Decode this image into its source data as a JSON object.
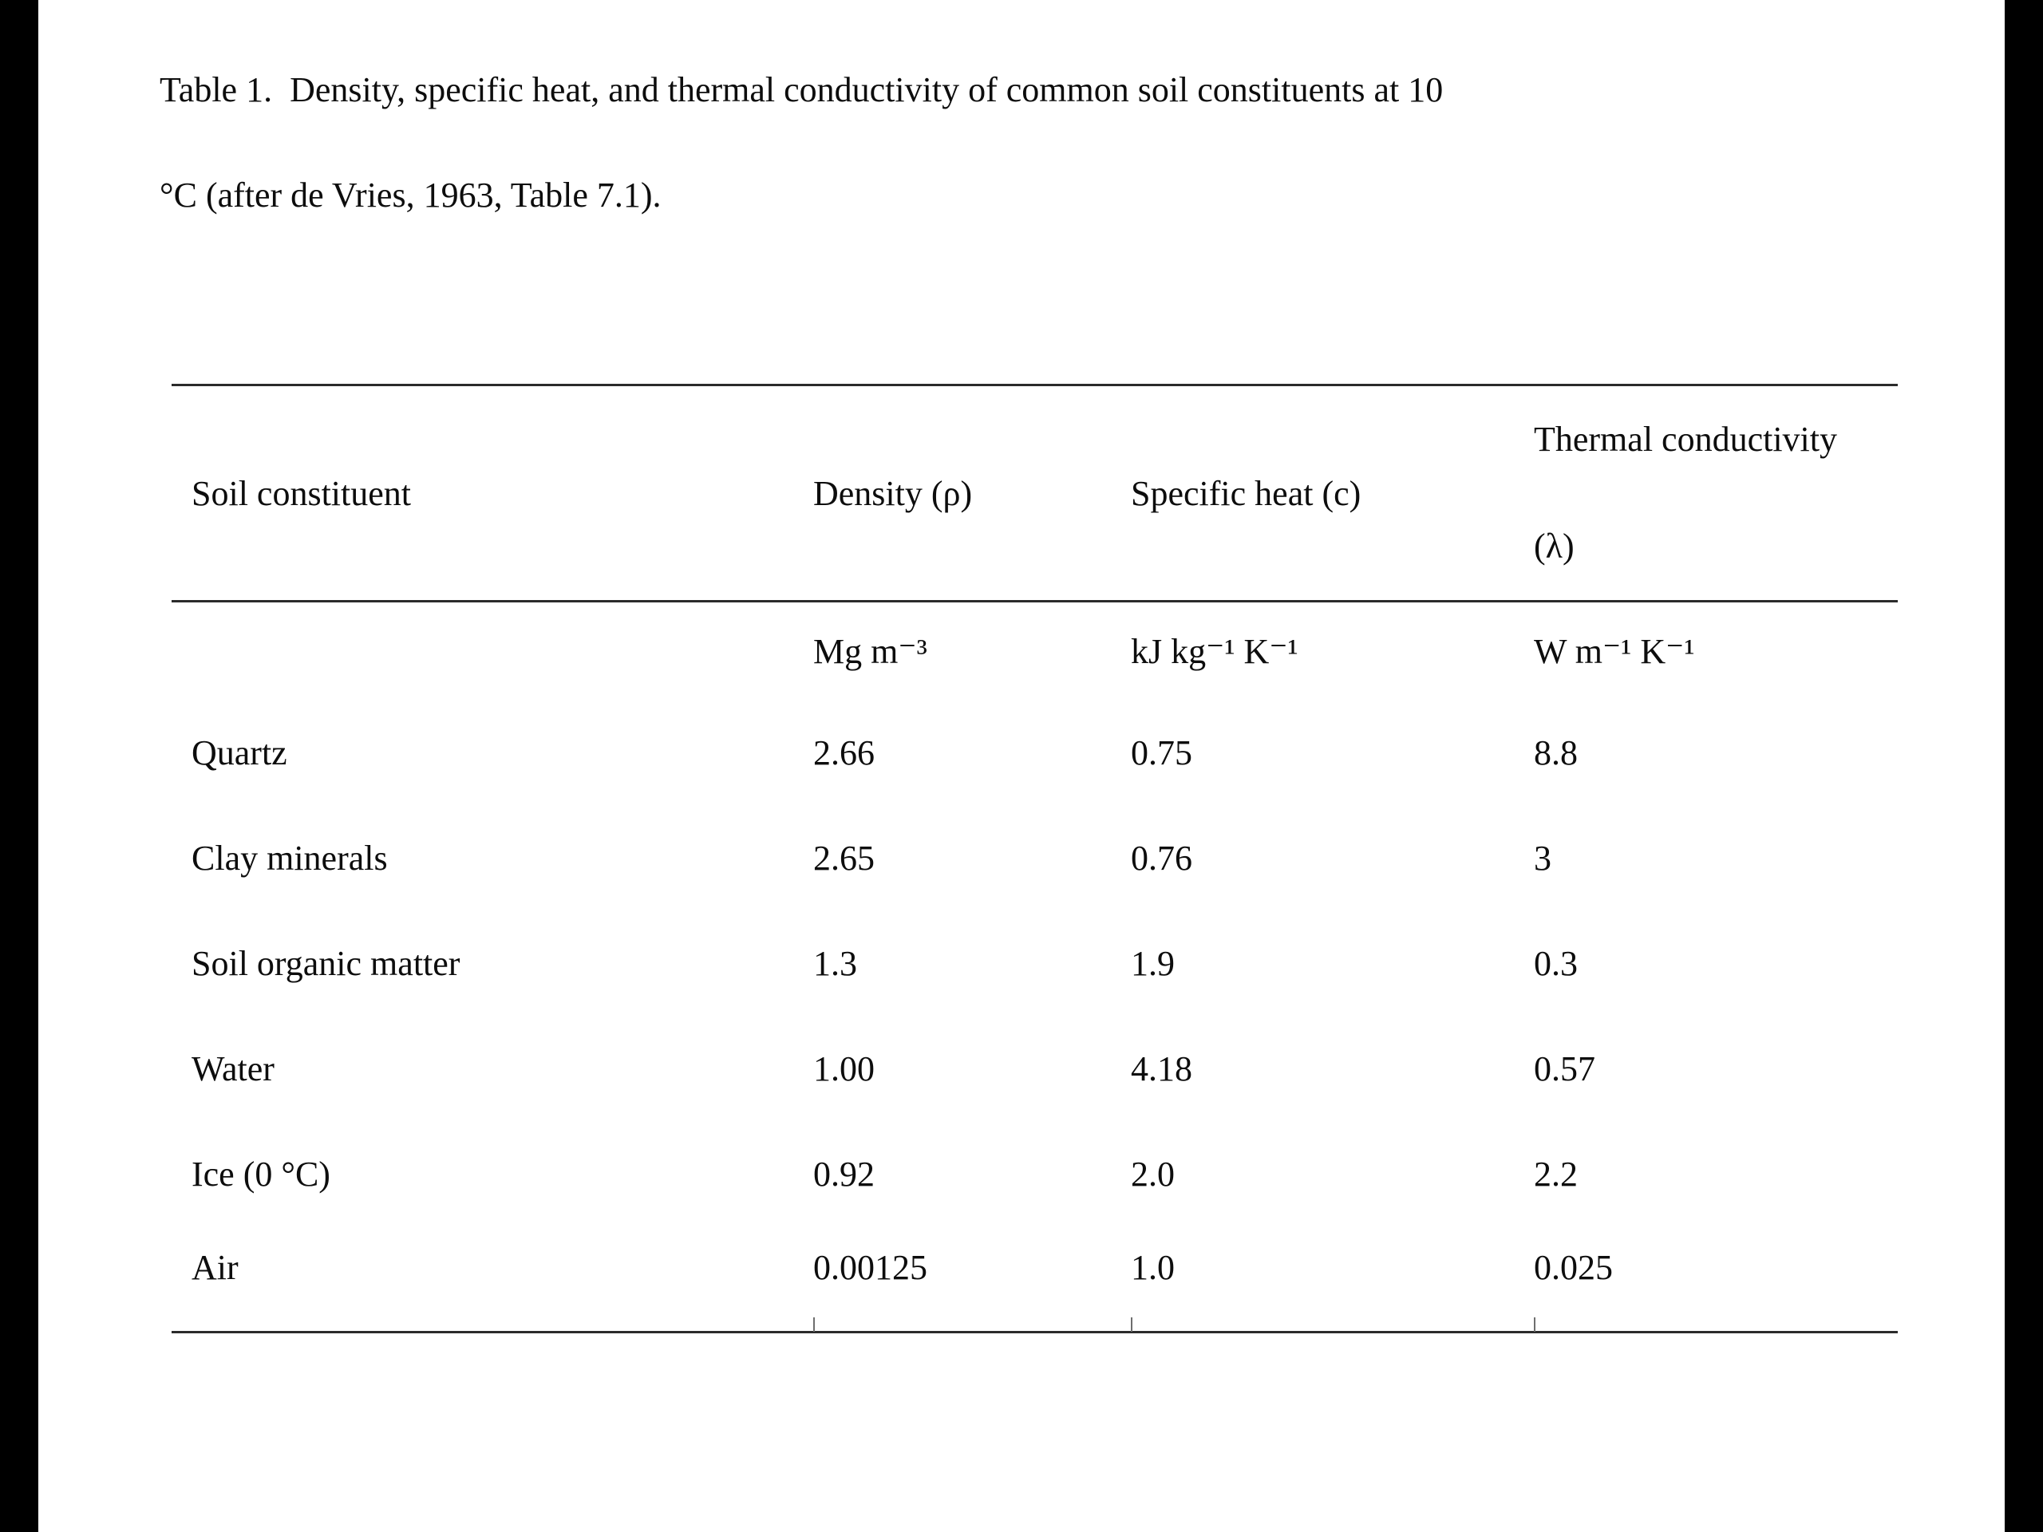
{
  "caption": {
    "lines": [
      "Table 1.  Density, specific heat, and thermal conductivity of common soil constituents at 10",
      "°C (after de Vries, 1963, Table 7.1)."
    ]
  },
  "table": {
    "columns": [
      {
        "label": "Soil constituent",
        "unit": ""
      },
      {
        "label": "Density (ρ)",
        "unit": "Mg m⁻³"
      },
      {
        "label": "Specific heat (c)",
        "unit": "kJ kg⁻¹ K⁻¹"
      },
      {
        "label": "Thermal conductivity (λ)",
        "unit": "W m⁻¹ K⁻¹"
      }
    ],
    "rows": [
      {
        "constituent": "Quartz",
        "density": "2.66",
        "specific_heat": "0.75",
        "thermal_conductivity": "8.8"
      },
      {
        "constituent": "Clay minerals",
        "density": "2.65",
        "specific_heat": "0.76",
        "thermal_conductivity": "3"
      },
      {
        "constituent": "Soil organic matter",
        "density": "1.3",
        "specific_heat": "1.9",
        "thermal_conductivity": "0.3"
      },
      {
        "constituent": "Water",
        "density": "1.00",
        "specific_heat": "4.18",
        "thermal_conductivity": "0.57"
      },
      {
        "constituent": "Ice (0 °C)",
        "density": "0.92",
        "specific_heat": "2.0",
        "thermal_conductivity": "2.2"
      },
      {
        "constituent": "Air",
        "density": "0.00125",
        "specific_heat": "1.0",
        "thermal_conductivity": "0.025"
      }
    ]
  }
}
